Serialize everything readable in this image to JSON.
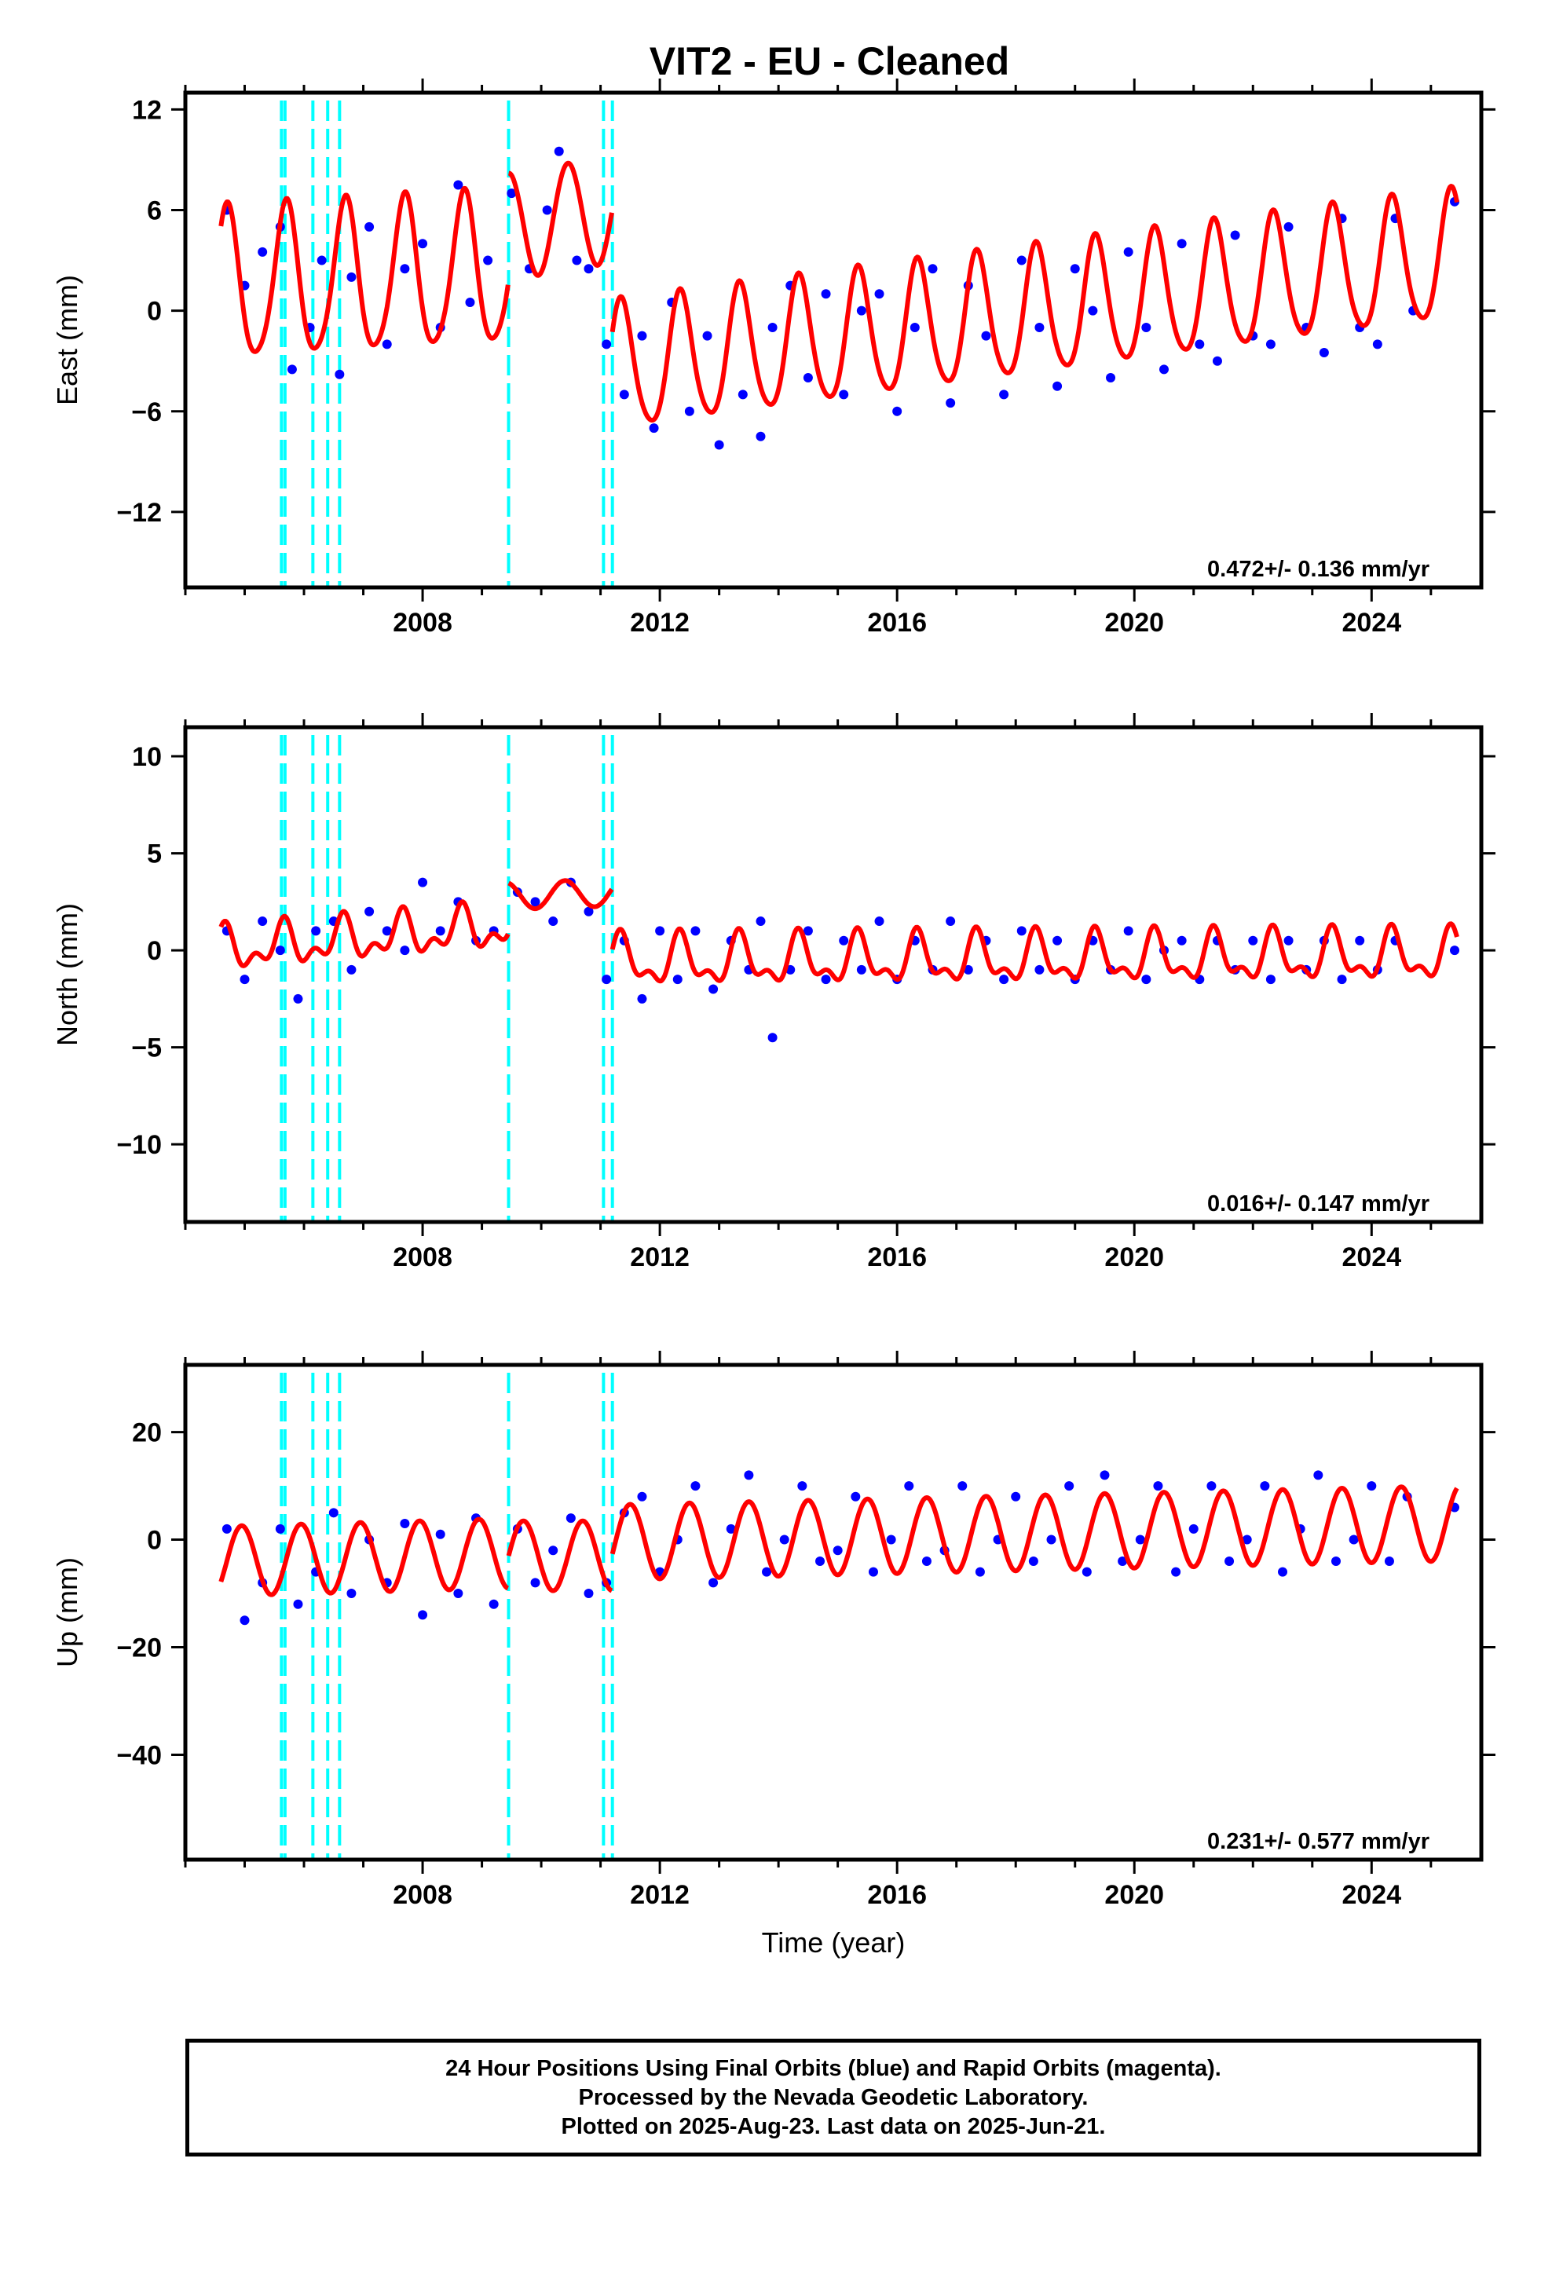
{
  "title": "VIT2  - EU - Cleaned",
  "colors": {
    "data": "#0000ff",
    "model": "#ff0000",
    "breaks": "#00ffff",
    "frame": "#000000"
  },
  "footer": {
    "line1": "24 Hour Positions Using Final Orbits (blue) and Rapid Orbits (magenta).",
    "line2": "Processed by the Nevada Geodetic Laboratory.",
    "line3": "Plotted on 2025-Aug-23. Last data on 2025-Jun-21."
  },
  "chart_data": [
    {
      "type": "scatter",
      "component": "East",
      "ylabel": "East (mm)",
      "xlabel": "",
      "xlim": [
        2004.0,
        2025.85
      ],
      "ylim": [
        -16.5,
        13.0
      ],
      "xticks": [
        2008,
        2012,
        2016,
        2020,
        2024
      ],
      "yticks": [
        12,
        6,
        0,
        -6,
        -12
      ],
      "rate_label": "0.472+/- 0.136 mm/yr",
      "breaks": [
        2005.62,
        2005.68,
        2006.15,
        2006.4,
        2006.6,
        2009.45,
        2011.05,
        2011.2
      ],
      "series": [
        {
          "role": "daily positions",
          "x": [
            2004.7,
            2005.0,
            2005.3,
            2005.6,
            2005.8,
            2006.1,
            2006.3,
            2006.6,
            2006.8,
            2007.1,
            2007.4,
            2007.7,
            2008.0,
            2008.3,
            2008.6,
            2008.8,
            2009.1,
            2009.5,
            2009.8,
            2010.1,
            2010.3,
            2010.6,
            2010.8,
            2011.1,
            2011.4,
            2011.7,
            2011.9,
            2012.2,
            2012.5,
            2012.8,
            2013.0,
            2013.4,
            2013.7,
            2013.9,
            2014.2,
            2014.5,
            2014.8,
            2015.1,
            2015.4,
            2015.7,
            2016.0,
            2016.3,
            2016.6,
            2016.9,
            2017.2,
            2017.5,
            2017.8,
            2018.1,
            2018.4,
            2018.7,
            2019.0,
            2019.3,
            2019.6,
            2019.9,
            2020.2,
            2020.5,
            2020.8,
            2021.1,
            2021.4,
            2021.7,
            2022.0,
            2022.3,
            2022.6,
            2022.9,
            2023.2,
            2023.5,
            2023.8,
            2024.1,
            2024.4,
            2024.7,
            2025.4
          ],
          "y": [
            6.0,
            1.5,
            3.5,
            5.0,
            -3.5,
            -1.0,
            3.0,
            -3.8,
            2.0,
            5.0,
            -2.0,
            2.5,
            4.0,
            -1.0,
            7.5,
            0.5,
            3.0,
            7.0,
            2.5,
            6.0,
            9.5,
            3.0,
            2.5,
            -2.0,
            -5.0,
            -1.5,
            -7.0,
            0.5,
            -6.0,
            -1.5,
            -8.0,
            -5.0,
            -7.5,
            -1.0,
            1.5,
            -4.0,
            1.0,
            -5.0,
            0.0,
            1.0,
            -6.0,
            -1.0,
            2.5,
            -5.5,
            1.5,
            -1.5,
            -5.0,
            3.0,
            -1.0,
            -4.5,
            2.5,
            0.0,
            -4.0,
            3.5,
            -1.0,
            -3.5,
            4.0,
            -2.0,
            -3.0,
            4.5,
            -1.5,
            -2.0,
            5.0,
            -1.0,
            -2.5,
            5.5,
            -1.0,
            -2.0,
            5.5,
            0.0,
            6.5
          ]
        }
      ]
    },
    {
      "type": "scatter",
      "component": "North",
      "ylabel": "North (mm)",
      "xlabel": "",
      "xlim": [
        2004.0,
        2025.85
      ],
      "ylim": [
        -14.0,
        11.5
      ],
      "xticks": [
        2008,
        2012,
        2016,
        2020,
        2024
      ],
      "yticks": [
        10,
        5,
        0,
        -5,
        -10
      ],
      "rate_label": "0.016+/- 0.147 mm/yr",
      "breaks": [
        2005.62,
        2005.68,
        2006.15,
        2006.4,
        2006.6,
        2009.45,
        2011.05,
        2011.2
      ],
      "series": [
        {
          "role": "daily positions",
          "x": [
            2004.7,
            2005.0,
            2005.3,
            2005.6,
            2005.9,
            2006.2,
            2006.5,
            2006.8,
            2007.1,
            2007.4,
            2007.7,
            2008.0,
            2008.3,
            2008.6,
            2008.9,
            2009.2,
            2009.6,
            2009.9,
            2010.2,
            2010.5,
            2010.8,
            2011.1,
            2011.4,
            2011.7,
            2012.0,
            2012.3,
            2012.6,
            2012.9,
            2013.2,
            2013.5,
            2013.7,
            2013.9,
            2014.2,
            2014.5,
            2014.8,
            2015.1,
            2015.4,
            2015.7,
            2016.0,
            2016.3,
            2016.6,
            2016.9,
            2017.2,
            2017.5,
            2017.8,
            2018.1,
            2018.4,
            2018.7,
            2019.0,
            2019.3,
            2019.6,
            2019.9,
            2020.2,
            2020.5,
            2020.8,
            2021.1,
            2021.4,
            2021.7,
            2022.0,
            2022.3,
            2022.6,
            2022.9,
            2023.2,
            2023.5,
            2023.8,
            2024.1,
            2024.4,
            2025.4
          ],
          "y": [
            1.0,
            -1.5,
            1.5,
            0.0,
            -2.5,
            1.0,
            1.5,
            -1.0,
            2.0,
            1.0,
            0.0,
            3.5,
            1.0,
            2.5,
            0.5,
            1.0,
            3.0,
            2.5,
            1.5,
            3.5,
            2.0,
            -1.5,
            0.5,
            -2.5,
            1.0,
            -1.5,
            1.0,
            -2.0,
            0.5,
            -1.0,
            1.5,
            -4.5,
            -1.0,
            1.0,
            -1.5,
            0.5,
            -1.0,
            1.5,
            -1.5,
            0.5,
            -1.0,
            1.5,
            -1.0,
            0.5,
            -1.5,
            1.0,
            -1.0,
            0.5,
            -1.5,
            0.5,
            -1.0,
            1.0,
            -1.5,
            0.0,
            0.5,
            -1.5,
            0.5,
            -1.0,
            0.5,
            -1.5,
            0.5,
            -1.0,
            0.5,
            -1.5,
            0.5,
            -1.0,
            0.5,
            0.0
          ]
        }
      ]
    },
    {
      "type": "scatter",
      "component": "Up",
      "ylabel": "Up (mm)",
      "xlabel": "Time (year)",
      "xlim": [
        2004.0,
        2025.85
      ],
      "ylim": [
        -59.5,
        32.5
      ],
      "xticks": [
        2008,
        2012,
        2016,
        2020,
        2024
      ],
      "yticks": [
        20,
        0,
        -20,
        -40
      ],
      "rate_label": "0.231+/- 0.577 mm/yr",
      "breaks": [
        2005.62,
        2005.68,
        2006.15,
        2006.4,
        2006.6,
        2009.45,
        2011.05,
        2011.2
      ],
      "series": [
        {
          "role": "daily positions",
          "x": [
            2004.7,
            2005.0,
            2005.3,
            2005.6,
            2005.9,
            2006.2,
            2006.5,
            2006.8,
            2007.1,
            2007.4,
            2007.7,
            2008.0,
            2008.3,
            2008.6,
            2008.9,
            2009.2,
            2009.6,
            2009.9,
            2010.2,
            2010.5,
            2010.8,
            2011.1,
            2011.4,
            2011.7,
            2012.0,
            2012.3,
            2012.6,
            2012.9,
            2013.2,
            2013.5,
            2013.8,
            2014.1,
            2014.4,
            2014.7,
            2015.0,
            2015.3,
            2015.6,
            2015.9,
            2016.2,
            2016.5,
            2016.8,
            2017.1,
            2017.4,
            2017.7,
            2018.0,
            2018.3,
            2018.6,
            2018.9,
            2019.2,
            2019.5,
            2019.8,
            2020.1,
            2020.4,
            2020.7,
            2021.0,
            2021.3,
            2021.6,
            2021.9,
            2022.2,
            2022.5,
            2022.8,
            2023.1,
            2023.4,
            2023.7,
            2024.0,
            2024.3,
            2024.6,
            2025.4
          ],
          "y": [
            2.0,
            -15.0,
            -8.0,
            2.0,
            -12.0,
            -6.0,
            5.0,
            -10.0,
            0.0,
            -8.0,
            3.0,
            -14.0,
            1.0,
            -10.0,
            4.0,
            -12.0,
            2.0,
            -8.0,
            -2.0,
            4.0,
            -10.0,
            -8.0,
            5.0,
            8.0,
            -6.0,
            0.0,
            10.0,
            -8.0,
            2.0,
            12.0,
            -6.0,
            0.0,
            10.0,
            -4.0,
            -2.0,
            8.0,
            -6.0,
            0.0,
            10.0,
            -4.0,
            -2.0,
            10.0,
            -6.0,
            0.0,
            8.0,
            -4.0,
            0.0,
            10.0,
            -6.0,
            12.0,
            -4.0,
            0.0,
            10.0,
            -6.0,
            2.0,
            10.0,
            -4.0,
            0.0,
            10.0,
            -6.0,
            2.0,
            12.0,
            -4.0,
            0.0,
            10.0,
            -4.0,
            8.0,
            6.0
          ]
        }
      ]
    }
  ]
}
